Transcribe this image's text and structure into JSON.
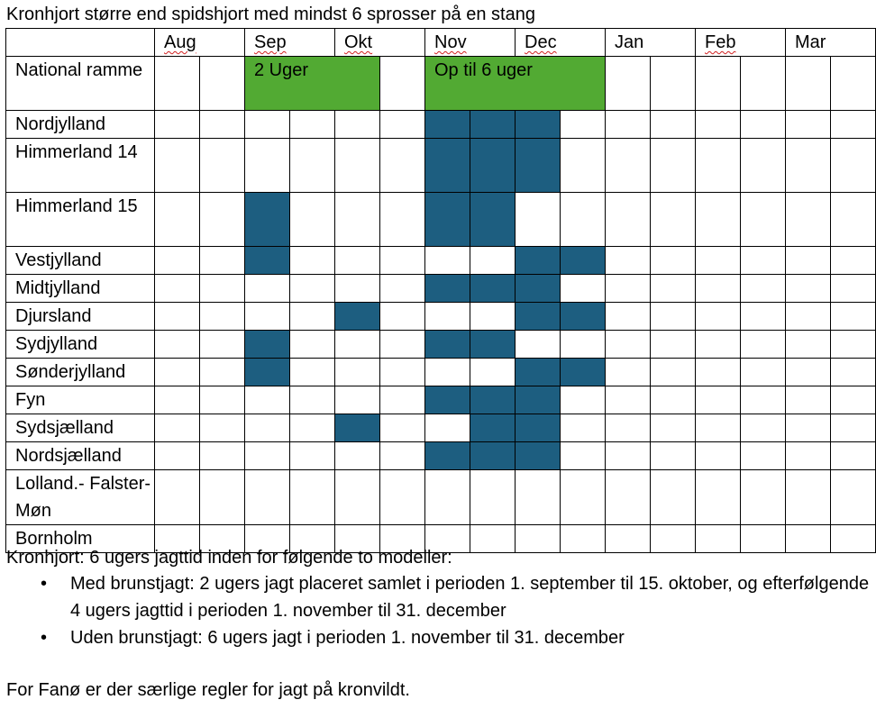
{
  "title": "Kronhjort større end spidshjort med mindst 6 sprosser på en stang",
  "months": [
    "Aug",
    "Sep",
    "Okt",
    "Nov",
    "Dec",
    "Jan",
    "Feb",
    "Mar"
  ],
  "spellflag_months": [
    true,
    true,
    true,
    true,
    true,
    false,
    true,
    false
  ],
  "national": {
    "label": "National ramme",
    "periods": [
      {
        "label": "2 Uger",
        "start": 2,
        "span": 3
      },
      {
        "label": "Op til 6 uger",
        "start": 6,
        "span": 4
      }
    ],
    "color": "#52aa33"
  },
  "fill_color": "#1d5e80",
  "regions": [
    {
      "name": "Nordjylland",
      "tall": false,
      "filled": [
        6,
        7,
        8
      ]
    },
    {
      "name": "Himmerland 14",
      "tall": true,
      "filled": [
        6,
        7,
        8
      ]
    },
    {
      "name": "Himmerland 15",
      "tall": true,
      "filled": [
        2,
        6,
        7
      ]
    },
    {
      "name": "Vestjylland",
      "tall": false,
      "filled": [
        2,
        8,
        9
      ]
    },
    {
      "name": "Midtjylland",
      "tall": false,
      "filled": [
        6,
        7,
        8
      ]
    },
    {
      "name": "Djursland",
      "tall": false,
      "filled": [
        4,
        8,
        9
      ]
    },
    {
      "name": "Sydjylland",
      "tall": false,
      "filled": [
        2,
        6,
        7
      ]
    },
    {
      "name": "Sønderjylland",
      "tall": false,
      "filled": [
        2,
        8,
        9
      ]
    },
    {
      "name": "Fyn",
      "tall": false,
      "filled": [
        6,
        7,
        8
      ]
    },
    {
      "name": "Sydsjælland",
      "tall": false,
      "filled": [
        4,
        7,
        8
      ]
    },
    {
      "name": "Nordsjælland",
      "tall": false,
      "filled": [
        6,
        7,
        8
      ]
    },
    {
      "name": "Lolland.- Falster- Møn",
      "tall": true,
      "filled": []
    },
    {
      "name": "Bornholm",
      "tall": false,
      "filled": []
    }
  ],
  "intro": "Kronhjort: 6 ugers jagttid inden for følgende to modeller:",
  "models": [
    "Med brunstjagt: 2 ugers jagt placeret samlet i perioden 1. september til 15. oktober, og efterfølgende 4 ugers jagttid i perioden 1. november til 31. december",
    "Uden brunstjagt: 6 ugers jagt i perioden 1. november til 31. december"
  ],
  "bullet": "•",
  "footer": "For Fanø er der særlige regler for jagt på kronvildt."
}
